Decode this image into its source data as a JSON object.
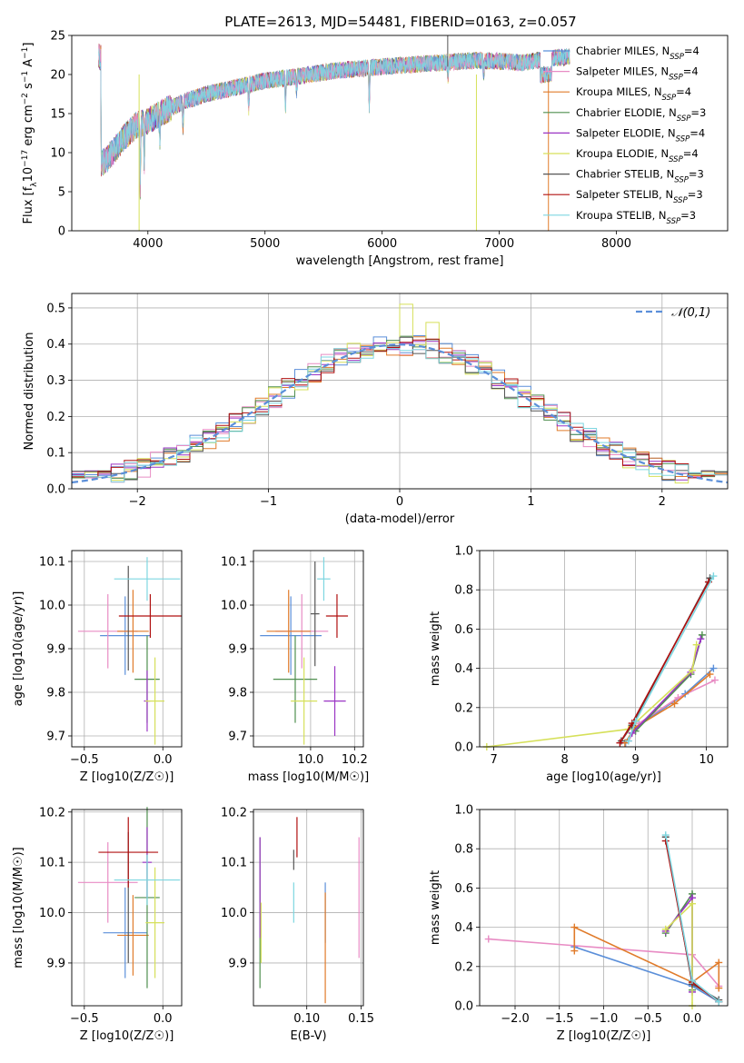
{
  "title": "PLATE=2613, MJD=54481, FIBERID=0163, z=0.057",
  "colors": {
    "Chabrier MILES": "#5b8fd9",
    "Salpeter MILES": "#e88cc4",
    "Kroupa MILES": "#e07b2a",
    "Chabrier ELODIE": "#4f8f4f",
    "Salpeter ELODIE": "#9a35c4",
    "Kroupa ELODIE": "#d6e05a",
    "Chabrier STELIB": "#555555",
    "Salpeter STELIB": "#b01010",
    "Kroupa STELIB": "#7dd6e0"
  },
  "chart_data": [
    {
      "type": "line",
      "id": "spectrum",
      "xlabel": "wavelength [Angstrom, rest frame]",
      "ylabel": "Flux [f_λ10^-17 erg cm^-2 s^-1 A^-1]",
      "xlim": [
        3350,
        8950
      ],
      "ylim": [
        0,
        25
      ],
      "xticks": [
        "4000",
        "5000",
        "6000",
        "7000",
        "8000"
      ],
      "yticks": [
        "0",
        "5",
        "10",
        "15",
        "20",
        "25"
      ],
      "legend_position": "right",
      "legend": [
        "Chabrier MILES, N_SSP=4",
        "Salpeter MILES, N_SSP=4",
        "Kroupa MILES, N_SSP=4",
        "Chabrier ELODIE, N_SSP=3",
        "Salpeter ELODIE, N_SSP=4",
        "Kroupa ELODIE, N_SSP=4",
        "Chabrier STELIB, N_SSP=3",
        "Salpeter STELIB, N_SSP=3",
        "Kroupa STELIB, N_SSP=3"
      ],
      "continuum": [
        [
          3600,
          8.5
        ],
        [
          3700,
          10
        ],
        [
          3800,
          12
        ],
        [
          3900,
          13.5
        ],
        [
          4000,
          14
        ],
        [
          4100,
          15
        ],
        [
          4300,
          16.5
        ],
        [
          4500,
          17.5
        ],
        [
          4800,
          18.5
        ],
        [
          5000,
          19.2
        ],
        [
          5300,
          19.8
        ],
        [
          5600,
          20.5
        ],
        [
          6000,
          21
        ],
        [
          6500,
          21.5
        ],
        [
          6800,
          21.8
        ],
        [
          7000,
          21.7
        ],
        [
          7200,
          21.5
        ],
        [
          7400,
          22
        ],
        [
          7600,
          22.3
        ]
      ],
      "range": [
        3580,
        7600
      ]
    },
    {
      "type": "histogram",
      "id": "residuals",
      "xlabel": "(data-model)/error",
      "ylabel": "Normed distribution",
      "xlim": [
        -2.5,
        2.5
      ],
      "ylim": [
        0,
        0.54
      ],
      "xticks": [
        "-2",
        "-1",
        "0",
        "1",
        "2"
      ],
      "yticks": [
        "0.0",
        "0.1",
        "0.2",
        "0.3",
        "0.4",
        "0.5"
      ],
      "legend": "𝒩(0,1)",
      "legend_position": "top-right",
      "bin_edges_start": -2.5,
      "bin_width": 0.1
    },
    {
      "type": "scatter",
      "id": "age_vs_Z",
      "xlabel": "Z [log10(Z/Z☉)]",
      "ylabel": "age  [log10(age/yr)]",
      "xlim": [
        -0.58,
        0.12
      ],
      "ylim": [
        9.675,
        10.125
      ],
      "xticks": [
        "-0.5",
        "0.0"
      ],
      "yticks": [
        "9.7",
        "9.8",
        "9.9",
        "10.0",
        "10.1"
      ],
      "points": [
        {
          "series": "Chabrier MILES",
          "x": -0.24,
          "xerr": 0.16,
          "y": 9.93,
          "yerr": 0.09
        },
        {
          "series": "Salpeter MILES",
          "x": -0.35,
          "xerr": 0.19,
          "y": 9.94,
          "yerr": 0.085
        },
        {
          "series": "Kroupa MILES",
          "x": -0.19,
          "xerr": 0.1,
          "y": 9.94,
          "yerr": 0.095
        },
        {
          "series": "Chabrier ELODIE",
          "x": -0.1,
          "xerr": 0.08,
          "y": 9.83,
          "yerr": 0.1
        },
        {
          "series": "Salpeter ELODIE",
          "x": -0.1,
          "xerr": 0.02,
          "y": 9.78,
          "yerr": 0.07
        },
        {
          "series": "Kroupa ELODIE",
          "x": -0.05,
          "xerr": 0.06,
          "y": 9.78,
          "yerr": 0.1
        },
        {
          "series": "Chabrier STELIB",
          "x": -0.22,
          "xerr": 0.0,
          "y": 9.97,
          "yerr": 0.12
        },
        {
          "series": "Salpeter STELIB",
          "x": -0.08,
          "xerr": 0.2,
          "y": 9.975,
          "yerr": 0.05
        },
        {
          "series": "Kroupa STELIB",
          "x": -0.1,
          "xerr": 0.21,
          "y": 10.06,
          "yerr": 0.05
        }
      ]
    },
    {
      "type": "scatter",
      "id": "age_vs_mass",
      "xlabel": "mass [log10(M/M☉)]",
      "ylabel": "",
      "xlim": [
        9.74,
        10.24
      ],
      "ylim": [
        9.675,
        10.125
      ],
      "xticks": [
        "10.0",
        "10.2"
      ],
      "yticks": [
        "9.7",
        "9.8",
        "9.9",
        "10.0",
        "10.1"
      ],
      "points": [
        {
          "series": "Chabrier MILES",
          "x": 9.91,
          "xerr": 0.14,
          "y": 9.93,
          "yerr": 0.09
        },
        {
          "series": "Salpeter MILES",
          "x": 9.96,
          "xerr": 0.12,
          "y": 9.94,
          "yerr": 0.085
        },
        {
          "series": "Kroupa MILES",
          "x": 9.9,
          "xerr": 0.1,
          "y": 9.94,
          "yerr": 0.095
        },
        {
          "series": "Chabrier ELODIE",
          "x": 9.93,
          "xerr": 0.1,
          "y": 9.83,
          "yerr": 0.1
        },
        {
          "series": "Salpeter ELODIE",
          "x": 10.11,
          "xerr": 0.05,
          "y": 9.78,
          "yerr": 0.08
        },
        {
          "series": "Kroupa ELODIE",
          "x": 9.97,
          "xerr": 0.06,
          "y": 9.78,
          "yerr": 0.1
        },
        {
          "series": "Chabrier STELIB",
          "x": 10.02,
          "xerr": 0.02,
          "y": 9.98,
          "yerr": 0.12
        },
        {
          "series": "Salpeter STELIB",
          "x": 10.12,
          "xerr": 0.05,
          "y": 9.975,
          "yerr": 0.05
        },
        {
          "series": "Kroupa STELIB",
          "x": 10.06,
          "xerr": 0.03,
          "y": 10.06,
          "yerr": 0.05
        }
      ]
    },
    {
      "type": "line",
      "id": "massweight_vs_age",
      "xlabel": "age  [log10(age/yr)]",
      "ylabel": "mass weight",
      "xlim": [
        6.8,
        10.3
      ],
      "ylim": [
        0,
        1
      ],
      "xticks": [
        "7",
        "8",
        "9",
        "10"
      ],
      "yticks": [
        "0.0",
        "0.2",
        "0.4",
        "0.6",
        "0.8",
        "1.0"
      ],
      "series": [
        {
          "name": "Chabrier MILES",
          "points": [
            [
              8.86,
              0.02
            ],
            [
              9.0,
              0.1
            ],
            [
              9.7,
              0.27
            ],
            [
              10.1,
              0.4
            ]
          ]
        },
        {
          "name": "Salpeter MILES",
          "points": [
            [
              8.9,
              0.03
            ],
            [
              9.05,
              0.12
            ],
            [
              9.6,
              0.25
            ],
            [
              10.12,
              0.34
            ]
          ]
        },
        {
          "name": "Kroupa MILES",
          "points": [
            [
              8.85,
              0.02
            ],
            [
              9.0,
              0.1
            ],
            [
              9.55,
              0.22
            ],
            [
              10.05,
              0.37
            ]
          ]
        },
        {
          "name": "Chabrier ELODIE",
          "points": [
            [
              9.0,
              0.08
            ],
            [
              9.78,
              0.37
            ],
            [
              9.94,
              0.57
            ]
          ]
        },
        {
          "name": "Salpeter ELODIE",
          "points": [
            [
              8.95,
              0.07
            ],
            [
              9.78,
              0.38
            ],
            [
              9.92,
              0.55
            ]
          ]
        },
        {
          "name": "Kroupa ELODIE",
          "points": [
            [
              6.9,
              0.0
            ],
            [
              8.9,
              0.09
            ],
            [
              9.8,
              0.39
            ],
            [
              9.86,
              0.52
            ]
          ]
        },
        {
          "name": "Chabrier STELIB",
          "points": [
            [
              8.8,
              0.03
            ],
            [
              8.95,
              0.11
            ],
            [
              10.05,
              0.86
            ]
          ]
        },
        {
          "name": "Salpeter STELIB",
          "points": [
            [
              8.78,
              0.02
            ],
            [
              8.95,
              0.12
            ],
            [
              10.03,
              0.84
            ]
          ]
        },
        {
          "name": "Kroupa STELIB",
          "points": [
            [
              8.9,
              0.03
            ],
            [
              9.0,
              0.13
            ],
            [
              10.1,
              0.87
            ]
          ]
        }
      ]
    },
    {
      "type": "scatter",
      "id": "mass_vs_Z",
      "xlabel": "Z [log10(Z/Z☉)]",
      "ylabel": "mass [log10(M/M☉)]",
      "xlim": [
        -0.58,
        0.12
      ],
      "ylim": [
        9.815,
        10.205
      ],
      "xticks": [
        "-0.5",
        "0.0"
      ],
      "yticks": [
        "9.9",
        "10.0",
        "10.1",
        "10.2"
      ],
      "points": [
        {
          "series": "Chabrier MILES",
          "x": -0.24,
          "xerr": 0.14,
          "y": 9.96,
          "yerr": 0.09
        },
        {
          "series": "Salpeter MILES",
          "x": -0.35,
          "xerr": 0.19,
          "y": 10.06,
          "yerr": 0.08
        },
        {
          "series": "Kroupa MILES",
          "x": -0.19,
          "xerr": 0.1,
          "y": 9.955,
          "yerr": 0.08
        },
        {
          "series": "Chabrier ELODIE",
          "x": -0.1,
          "xerr": 0.08,
          "y": 10.03,
          "yerr": 0.18
        },
        {
          "series": "Salpeter ELODIE",
          "x": -0.1,
          "xerr": 0.03,
          "y": 10.1,
          "yerr": 0.07
        },
        {
          "series": "Kroupa ELODIE",
          "x": -0.05,
          "xerr": 0.06,
          "y": 9.98,
          "yerr": 0.11
        },
        {
          "series": "Chabrier STELIB",
          "x": -0.22,
          "xerr": 0.0,
          "y": 10.03,
          "yerr": 0.13
        },
        {
          "series": "Salpeter STELIB",
          "x": -0.22,
          "xerr": 0.19,
          "y": 10.12,
          "yerr": 0.07
        },
        {
          "series": "Kroupa STELIB",
          "x": -0.1,
          "xerr": 0.21,
          "y": 10.065,
          "yerr": 0.05
        }
      ]
    },
    {
      "type": "scatter",
      "id": "mass_vs_ebv",
      "xlabel": "E(B-V)",
      "ylabel": "",
      "xlim": [
        0.051,
        0.152
      ],
      "ylim": [
        9.815,
        10.205
      ],
      "xticks": [
        "0.10",
        "0.15"
      ],
      "yticks": [
        "9.9",
        "10.0",
        "10.1",
        "10.2"
      ],
      "points": [
        {
          "series": "Chabrier MILES",
          "x": 0.117,
          "yerr": 0.06,
          "y": 10.0
        },
        {
          "series": "Salpeter MILES",
          "x": 0.148,
          "yerr": 0.12,
          "y": 10.03
        },
        {
          "series": "Kroupa MILES",
          "x": 0.117,
          "yerr": 0.11,
          "y": 9.93
        },
        {
          "series": "Chabrier ELODIE",
          "x": 0.057,
          "yerr": 0.15,
          "y": 10.0
        },
        {
          "series": "Salpeter ELODIE",
          "x": 0.057,
          "yerr": 0.1,
          "y": 10.05
        },
        {
          "series": "Kroupa ELODIE",
          "x": 0.058,
          "yerr": 0.06,
          "y": 9.96
        },
        {
          "series": "Chabrier STELIB",
          "x": 0.088,
          "yerr": 0.02,
          "y": 10.105
        },
        {
          "series": "Salpeter STELIB",
          "x": 0.091,
          "yerr": 0.04,
          "y": 10.15
        },
        {
          "series": "Kroupa STELIB",
          "x": 0.088,
          "yerr": 0.04,
          "y": 10.02
        }
      ]
    },
    {
      "type": "line",
      "id": "massweight_vs_Z",
      "xlabel": "Z [log10(Z/Z☉)]",
      "ylabel": "mass weight",
      "xlim": [
        -2.4,
        0.4
      ],
      "ylim": [
        0,
        1
      ],
      "xticks": [
        "-2.0",
        "-1.5",
        "-1.0",
        "-0.5",
        "0.0"
      ],
      "yticks": [
        "0.0",
        "0.2",
        "0.4",
        "0.6",
        "0.8",
        "1.0"
      ],
      "series": [
        {
          "name": "Chabrier MILES",
          "points": [
            [
              -1.33,
              0.3
            ],
            [
              0.0,
              0.1
            ],
            [
              0.3,
              0.02
            ]
          ]
        },
        {
          "name": "Salpeter MILES",
          "points": [
            [
              -2.3,
              0.34
            ],
            [
              0.0,
              0.26
            ],
            [
              0.3,
              0.1
            ]
          ]
        },
        {
          "name": "Kroupa MILES",
          "points": [
            [
              -1.33,
              0.28
            ],
            [
              -1.33,
              0.4
            ],
            [
              0.0,
              0.12
            ],
            [
              0.3,
              0.22
            ],
            [
              0.3,
              0.09
            ]
          ]
        },
        {
          "name": "Chabrier ELODIE",
          "points": [
            [
              -0.3,
              0.37
            ],
            [
              0.0,
              0.57
            ],
            [
              0.0,
              0.08
            ]
          ]
        },
        {
          "name": "Salpeter ELODIE",
          "points": [
            [
              -0.3,
              0.38
            ],
            [
              0.0,
              0.55
            ],
            [
              0.0,
              0.07
            ]
          ]
        },
        {
          "name": "Kroupa ELODIE",
          "points": [
            [
              -0.3,
              0.39
            ],
            [
              0.0,
              0.52
            ],
            [
              0.0,
              0.0
            ]
          ]
        },
        {
          "name": "Chabrier STELIB",
          "points": [
            [
              -0.3,
              0.86
            ],
            [
              0.0,
              0.11
            ],
            [
              0.3,
              0.03
            ]
          ]
        },
        {
          "name": "Salpeter STELIB",
          "points": [
            [
              -0.3,
              0.84
            ],
            [
              0.0,
              0.12
            ],
            [
              0.3,
              0.02
            ]
          ]
        },
        {
          "name": "Kroupa STELIB",
          "points": [
            [
              -0.3,
              0.87
            ],
            [
              0.0,
              0.13
            ],
            [
              0.3,
              0.02
            ]
          ]
        }
      ]
    }
  ]
}
